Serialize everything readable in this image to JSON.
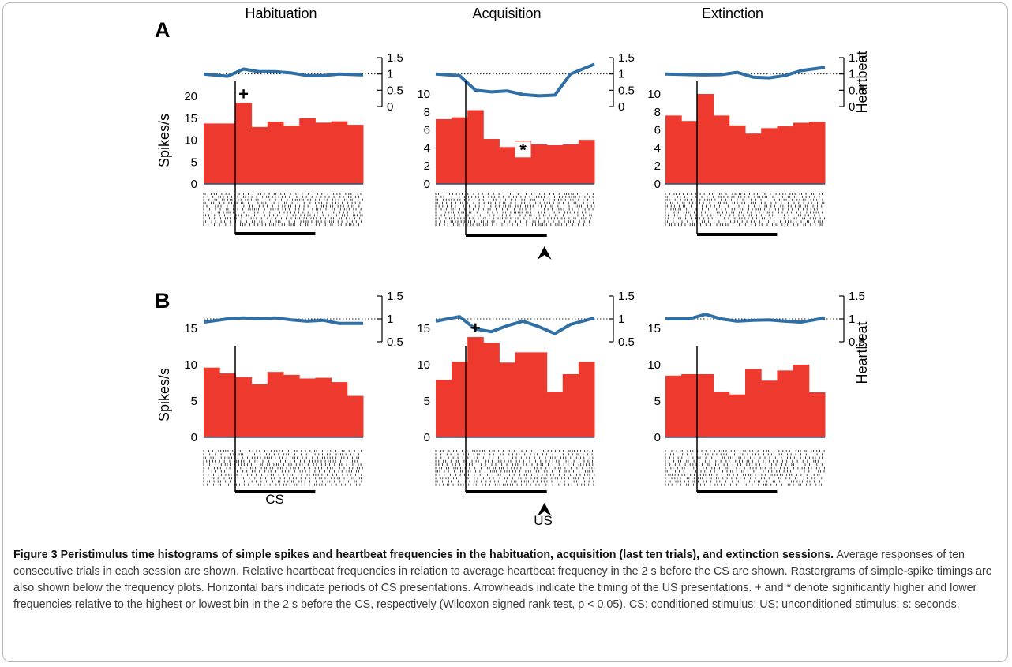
{
  "figure": {
    "panel_labels": [
      "A",
      "B"
    ],
    "column_titles": [
      "Habituation",
      "Acquisition",
      "Extinction"
    ],
    "spikes_label": "Spikes/s",
    "heartbeat_label": "Heartbeat",
    "cs_label": "CS",
    "us_label": "US",
    "plus_marker": "+",
    "star_marker": "*",
    "colors": {
      "bars": "#ee3a2e",
      "heartbeat": "#2f6fa6",
      "axis": "#000000",
      "raster": "#111111"
    }
  },
  "chart_data": [
    {
      "type": "bar",
      "panel": "A",
      "session": "Habituation",
      "categories": [
        "1",
        "2",
        "3",
        "4",
        "5",
        "6",
        "7",
        "8",
        "9",
        "10"
      ],
      "values": [
        13.8,
        13.8,
        18.5,
        13.0,
        14.2,
        13.3,
        15.0,
        14.0,
        14.3,
        13.5
      ],
      "ylabel": "Spikes/s",
      "ylim": [
        0,
        20
      ],
      "yticks": [
        0,
        5,
        10,
        15,
        20
      ],
      "cs_onset_bin": 2,
      "cs_end_bin": 7,
      "us_bin": null,
      "heartbeat": {
        "values": [
          1.0,
          0.93,
          1.15,
          1.07,
          1.07,
          1.03,
          0.95,
          0.95,
          1.0,
          0.97
        ],
        "ylim": [
          0,
          1.5
        ],
        "yticks": [
          0,
          0.5,
          1,
          1.5
        ],
        "reference": 1
      },
      "markers": [
        {
          "symbol": "+",
          "bin": 2
        }
      ]
    },
    {
      "type": "bar",
      "panel": "A",
      "session": "Acquisition",
      "categories": [
        "1",
        "2",
        "3",
        "4",
        "5",
        "6",
        "7",
        "8",
        "9",
        "10"
      ],
      "values": [
        7.2,
        7.4,
        8.2,
        5.0,
        4.1,
        4.8,
        4.4,
        4.3,
        4.4,
        4.9
      ],
      "ylabel": "",
      "ylim": [
        0,
        10
      ],
      "yticks": [
        0,
        2,
        4,
        6,
        8,
        10
      ],
      "cs_onset_bin": 2,
      "cs_end_bin": 7,
      "us_bin": 7,
      "heartbeat": {
        "values": [
          1.0,
          0.95,
          0.5,
          0.45,
          0.48,
          0.37,
          0.33,
          0.35,
          1.0,
          1.3
        ],
        "ylim": [
          0,
          1.5
        ],
        "yticks": [
          0,
          0.5,
          1,
          1.5
        ],
        "reference": 1
      },
      "markers": [
        {
          "symbol": "*",
          "bin": 5
        }
      ]
    },
    {
      "type": "bar",
      "panel": "A",
      "session": "Extinction",
      "categories": [
        "1",
        "2",
        "3",
        "4",
        "5",
        "6",
        "7",
        "8",
        "9",
        "10"
      ],
      "values": [
        7.6,
        7.0,
        10.0,
        7.6,
        6.5,
        5.6,
        6.2,
        6.4,
        6.8,
        6.9
      ],
      "ylabel": "",
      "ylim": [
        0,
        10
      ],
      "yticks": [
        0,
        2,
        4,
        6,
        8,
        10
      ],
      "cs_onset_bin": 2,
      "cs_end_bin": 7,
      "us_bin": null,
      "heartbeat": {
        "values": [
          1.0,
          0.98,
          0.97,
          0.98,
          1.05,
          0.9,
          0.88,
          0.95,
          1.1,
          1.2
        ],
        "ylim": [
          0,
          1.5
        ],
        "yticks": [
          0,
          0.5,
          1,
          1.5
        ],
        "reference": 1
      },
      "y2label": "Heartbeat",
      "markers": []
    },
    {
      "type": "bar",
      "panel": "B",
      "session": "Habituation",
      "categories": [
        "1",
        "2",
        "3",
        "4",
        "5",
        "6",
        "7",
        "8",
        "9",
        "10"
      ],
      "values": [
        9.6,
        8.8,
        8.3,
        7.3,
        9.0,
        8.6,
        8.1,
        8.2,
        7.6,
        5.7
      ],
      "ylabel": "Spikes/s",
      "ylim": [
        0,
        15
      ],
      "yticks": [
        0,
        5,
        10,
        15
      ],
      "cs_onset_bin": 2,
      "cs_end_bin": 7,
      "us_bin": null,
      "heartbeat": {
        "values": [
          0.93,
          1.0,
          1.02,
          1.0,
          1.02,
          0.98,
          0.95,
          0.97,
          0.9,
          0.9
        ],
        "ylim": [
          0.5,
          1.5
        ],
        "yticks": [
          0.5,
          1,
          1.5
        ],
        "reference": 1
      },
      "markers": []
    },
    {
      "type": "bar",
      "panel": "B",
      "session": "Acquisition",
      "categories": [
        "1",
        "2",
        "3",
        "4",
        "5",
        "6",
        "7",
        "8",
        "9",
        "10"
      ],
      "values": [
        7.9,
        10.4,
        13.8,
        13.0,
        10.3,
        11.7,
        11.7,
        6.3,
        8.7,
        10.4
      ],
      "ylabel": "",
      "ylim": [
        0,
        15
      ],
      "yticks": [
        0,
        5,
        10,
        15
      ],
      "cs_onset_bin": 2,
      "cs_end_bin": 7,
      "us_bin": 7,
      "heartbeat": {
        "values": [
          0.95,
          1.05,
          0.78,
          0.72,
          0.85,
          0.95,
          0.83,
          0.68,
          0.88,
          1.02
        ],
        "ylim": [
          0.5,
          1.5
        ],
        "yticks": [
          0.5,
          1,
          1.5
        ],
        "reference": 1
      },
      "markers": [
        {
          "symbol": "+",
          "bin": 2
        }
      ]
    },
    {
      "type": "bar",
      "panel": "B",
      "session": "Extinction",
      "categories": [
        "1",
        "2",
        "3",
        "4",
        "5",
        "6",
        "7",
        "8",
        "9",
        "10"
      ],
      "values": [
        8.5,
        8.7,
        8.7,
        6.3,
        5.9,
        9.4,
        7.8,
        9.2,
        10.0,
        6.2
      ],
      "ylabel": "",
      "ylim": [
        0,
        15
      ],
      "yticks": [
        0,
        5,
        10,
        15
      ],
      "cs_onset_bin": 2,
      "cs_end_bin": 7,
      "us_bin": null,
      "heartbeat": {
        "values": [
          1.0,
          1.0,
          1.1,
          1.0,
          0.95,
          0.97,
          0.98,
          0.95,
          0.93,
          1.02
        ],
        "ylim": [
          0.5,
          1.5
        ],
        "yticks": [
          0.5,
          1,
          1.5
        ],
        "reference": 1
      },
      "y2label": "Heartbeat",
      "markers": []
    }
  ],
  "caption": {
    "title": "Figure 3 Peristimulus time histograms of simple spikes and heartbeat frequencies in the habituation, acquisition (last ten trials), and extinction sessions.",
    "body": "Average responses of ten consecutive trials in each session are shown. Relative heartbeat frequencies in relation to average heartbeat frequency in the 2 s before the CS are shown. Rastergrams of simple-spike timings are also shown below the frequency plots. Horizontal bars indicate periods of CS presentations. Arrowheads indicate the timing of the US presentations. + and * denote significantly higher and lower frequencies relative to the highest or lowest bin in the 2 s before the CS, respectively (Wilcoxon signed rank test, p < 0.05). CS: conditioned stimulus; US: unconditioned stimulus; s: seconds."
  }
}
